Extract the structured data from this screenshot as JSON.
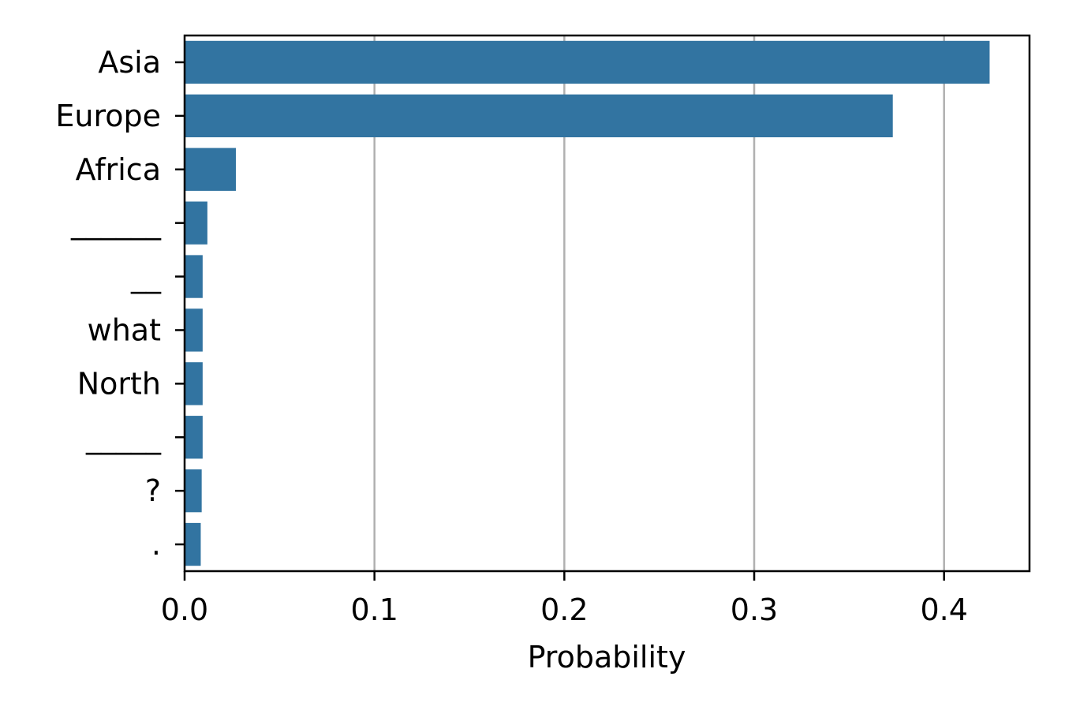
{
  "chart_data": {
    "type": "bar",
    "orientation": "horizontal",
    "categories": [
      "Asia",
      "Europe",
      "Africa",
      "______",
      "__",
      "what",
      "North",
      "_____",
      "?",
      "."
    ],
    "values": [
      0.424,
      0.373,
      0.027,
      0.012,
      0.0095,
      0.0095,
      0.0095,
      0.0095,
      0.009,
      0.0085
    ],
    "xlabel": "Probability",
    "ylabel": "",
    "xlim": [
      0,
      0.445
    ],
    "xticks": [
      "0.0",
      "0.1",
      "0.2",
      "0.3",
      "0.4"
    ],
    "grid": "vertical",
    "bar_color": "#3274a1",
    "grid_color": "#b0b0b0"
  }
}
